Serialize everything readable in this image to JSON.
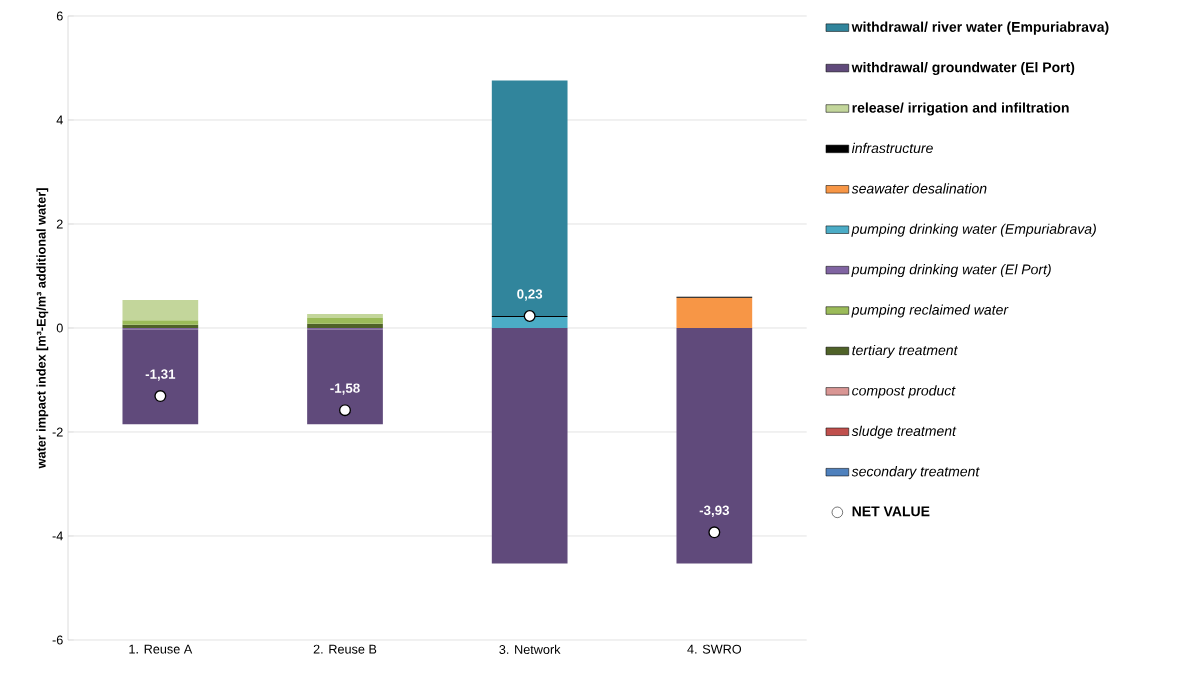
{
  "chart_data": {
    "type": "bar",
    "stacked": true,
    "ylabel": "water impact index [m³-Eq/m³ additional water]",
    "categories": [
      "1. Reuse A",
      "2. Reuse B",
      "3. Network",
      "4. SWRO"
    ],
    "ylim": [
      -6,
      6
    ],
    "yticks": [
      -6,
      -4,
      -2,
      0,
      2,
      4,
      6
    ],
    "grid": "y",
    "legend": "right",
    "series": [
      {
        "name": "secondary treatment",
        "color": "#4f81bd",
        "values": [
          0,
          0,
          0,
          0
        ]
      },
      {
        "name": "sludge treatment",
        "color": "#c0504d",
        "values": [
          0,
          0,
          0,
          0
        ]
      },
      {
        "name": "compost product",
        "color": "#d99694",
        "values": [
          0,
          0,
          0,
          0
        ]
      },
      {
        "name": "tertiary treatment",
        "color": "#4f6228",
        "values": [
          0.06,
          0.08,
          0,
          0
        ]
      },
      {
        "name": "pumping reclaimed water",
        "color": "#9bbb59",
        "values": [
          0.09,
          0.11,
          0,
          0
        ]
      },
      {
        "name": "pumping drinking water (El Port)",
        "color": "#8064a2",
        "values": [
          -0.03,
          -0.03,
          0,
          0
        ]
      },
      {
        "name": "pumping drinking water (Empuriabrava)",
        "color": "#4bacc6",
        "values": [
          0,
          0,
          0.21,
          0
        ]
      },
      {
        "name": "seawater desalination",
        "color": "#f79646",
        "values": [
          0,
          0,
          0,
          0.58
        ]
      },
      {
        "name": "infrastructure",
        "color": "#000000",
        "values": [
          0,
          0,
          0.02,
          0.02
        ]
      },
      {
        "name": "release/ irrigation and infiltration",
        "color": "#c3d69b",
        "values": [
          0.39,
          0.08,
          0,
          0
        ]
      },
      {
        "name": "withdrawal/ groundwater (El Port)",
        "color": "#604a7b",
        "values": [
          -1.82,
          -1.82,
          -4.53,
          -4.53
        ]
      },
      {
        "name": "withdrawal/ river water (Empuriabrava)",
        "color": "#31859c",
        "values": [
          0,
          0,
          4.53,
          0
        ]
      },
      {
        "name": "NET VALUE",
        "type": "scatter",
        "color": "#ffffff",
        "values": [
          -1.31,
          -1.58,
          0.23,
          -3.93
        ],
        "value_labels": [
          "-1,31",
          "-1,58",
          "0,23",
          "-3,93"
        ]
      }
    ]
  }
}
